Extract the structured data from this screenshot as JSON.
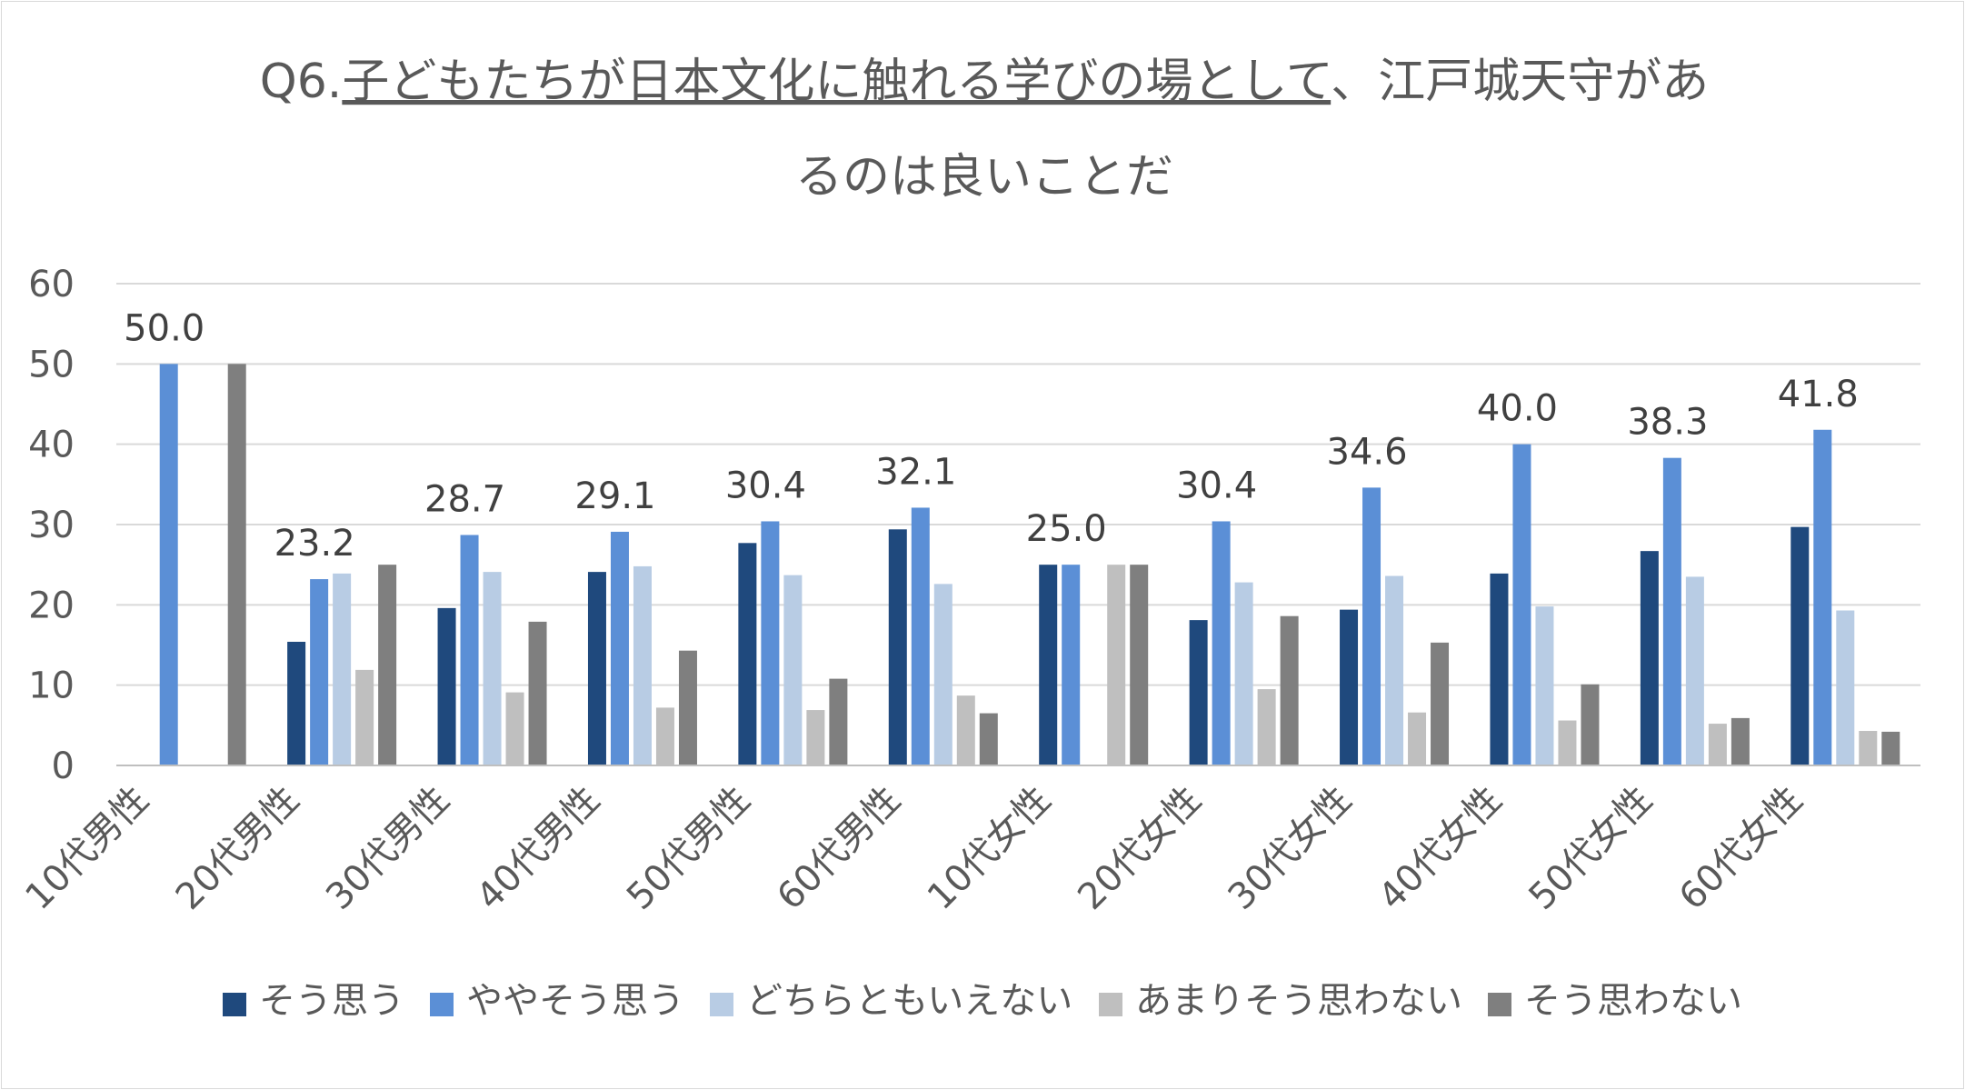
{
  "chart_data": {
    "type": "bar",
    "title_parts": {
      "prefix": "Q6.",
      "underlined": "子どもたちが日本文化に触れる学びの場として",
      "suffix_line1": "、江戸城天守があ",
      "line2": "るのは良いことだ"
    },
    "categories": [
      "10代男性",
      "20代男性",
      "30代男性",
      "40代男性",
      "50代男性",
      "60代男性",
      "10代女性",
      "20代女性",
      "30代女性",
      "40代女性",
      "50代女性",
      "60代女性"
    ],
    "series": [
      {
        "name": "そう思う",
        "color": "#1f497d",
        "values": [
          0,
          15.4,
          19.6,
          24.1,
          27.7,
          29.4,
          25.0,
          18.1,
          19.4,
          23.9,
          26.7,
          29.7
        ]
      },
      {
        "name": "ややそう思う",
        "color": "#5b8fd6",
        "values": [
          50.0,
          23.2,
          28.7,
          29.1,
          30.4,
          32.1,
          25.0,
          30.4,
          34.6,
          40.0,
          38.3,
          41.8
        ]
      },
      {
        "name": "どちらともいえない",
        "color": "#b8cce4",
        "values": [
          0,
          23.9,
          24.1,
          24.8,
          23.7,
          22.6,
          0,
          22.8,
          23.6,
          19.8,
          23.5,
          19.3
        ]
      },
      {
        "name": "あまりそう思わない",
        "color": "#bfbfbf",
        "values": [
          0,
          11.9,
          9.1,
          7.2,
          6.9,
          8.7,
          25.0,
          9.5,
          6.6,
          5.6,
          5.2,
          4.3
        ]
      },
      {
        "name": "そう思わない",
        "color": "#7f7f7f",
        "values": [
          50.0,
          25.0,
          17.9,
          14.3,
          10.8,
          6.5,
          25.0,
          18.6,
          15.3,
          10.1,
          5.9,
          4.2
        ]
      }
    ],
    "data_labels": [
      "50.0",
      "23.2",
      "28.7",
      "29.1",
      "30.4",
      "32.1",
      "25.0",
      "30.4",
      "34.6",
      "40.0",
      "38.3",
      "41.8"
    ],
    "data_label_series": "ややそう思う",
    "yticks": [
      "0",
      "10",
      "20",
      "30",
      "40",
      "50",
      "60"
    ],
    "ylim": [
      0,
      60
    ],
    "grid": true,
    "legend_position": "bottom"
  }
}
